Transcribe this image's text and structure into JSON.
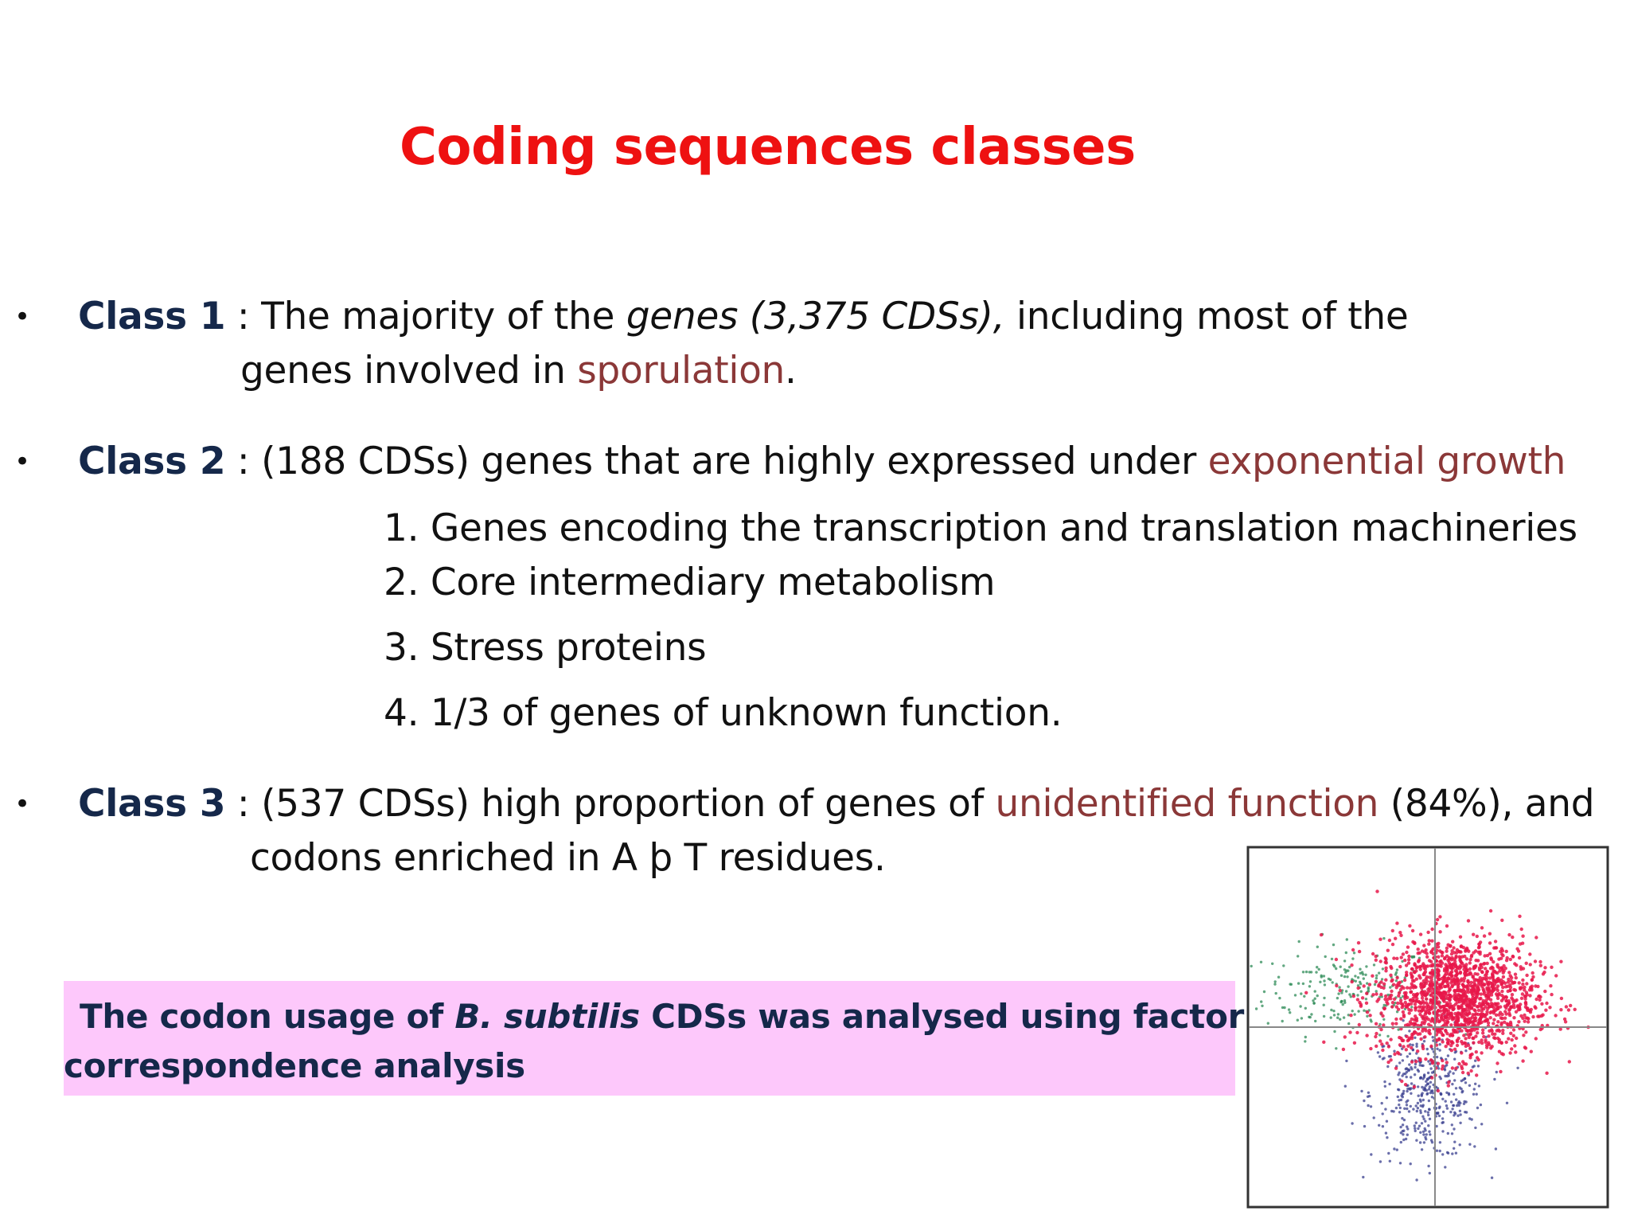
{
  "title": "Coding sequences classes",
  "bullet_symbol": "•",
  "class1": {
    "label": "Class 1",
    "sep": " : ",
    "text_a": "The majority of the ",
    "text_italic": "genes (3,375 CDSs),",
    "text_b": " including most of the",
    "line2_a": "genes involved in ",
    "line2_highlight": "sporulation",
    "line2_end": "."
  },
  "class2": {
    "label": "Class 2",
    "sep": " : ",
    "text": "(188 CDSs)  genes that are highly expressed under ",
    "highlight": "exponential growth",
    "items": [
      "1. Genes encoding the transcription and translation machineries",
      "2. Core intermediary metabolism",
      "3. Stress proteins",
      "4. 1/3 of genes of unknown function."
    ]
  },
  "class3": {
    "label": "Class 3",
    "sep": " : ",
    "text_a": "(537 CDSs) high proportion of genes of ",
    "highlight": "unidentified function",
    "text_b": " (84%), and",
    "line2": "codons enriched in A þ T residues."
  },
  "callout": {
    "line1_a": "The codon usage of ",
    "line1_italic": "B. subtilis",
    "line1_b": " CDSs was analysed using factorial",
    "line2": "correspondence analysis"
  },
  "chart_data": {
    "type": "scatter",
    "grid": false,
    "series": [
      {
        "color": "#e8174a",
        "center": [
          0.15,
          0.2
        ],
        "spread": [
          0.28,
          0.2
        ],
        "count": 1600
      },
      {
        "color": "#2e8b57",
        "center": [
          -0.6,
          0.25
        ],
        "spread": [
          0.3,
          0.15
        ],
        "count": 220
      },
      {
        "color": "#3a3f8f",
        "center": [
          -0.05,
          -0.45
        ],
        "spread": [
          0.2,
          0.22
        ],
        "count": 420
      }
    ],
    "xlim": [
      -1.3,
      1.2
    ],
    "ylim": [
      -1.2,
      1.2
    ],
    "axes_lines": [
      0,
      0
    ]
  }
}
